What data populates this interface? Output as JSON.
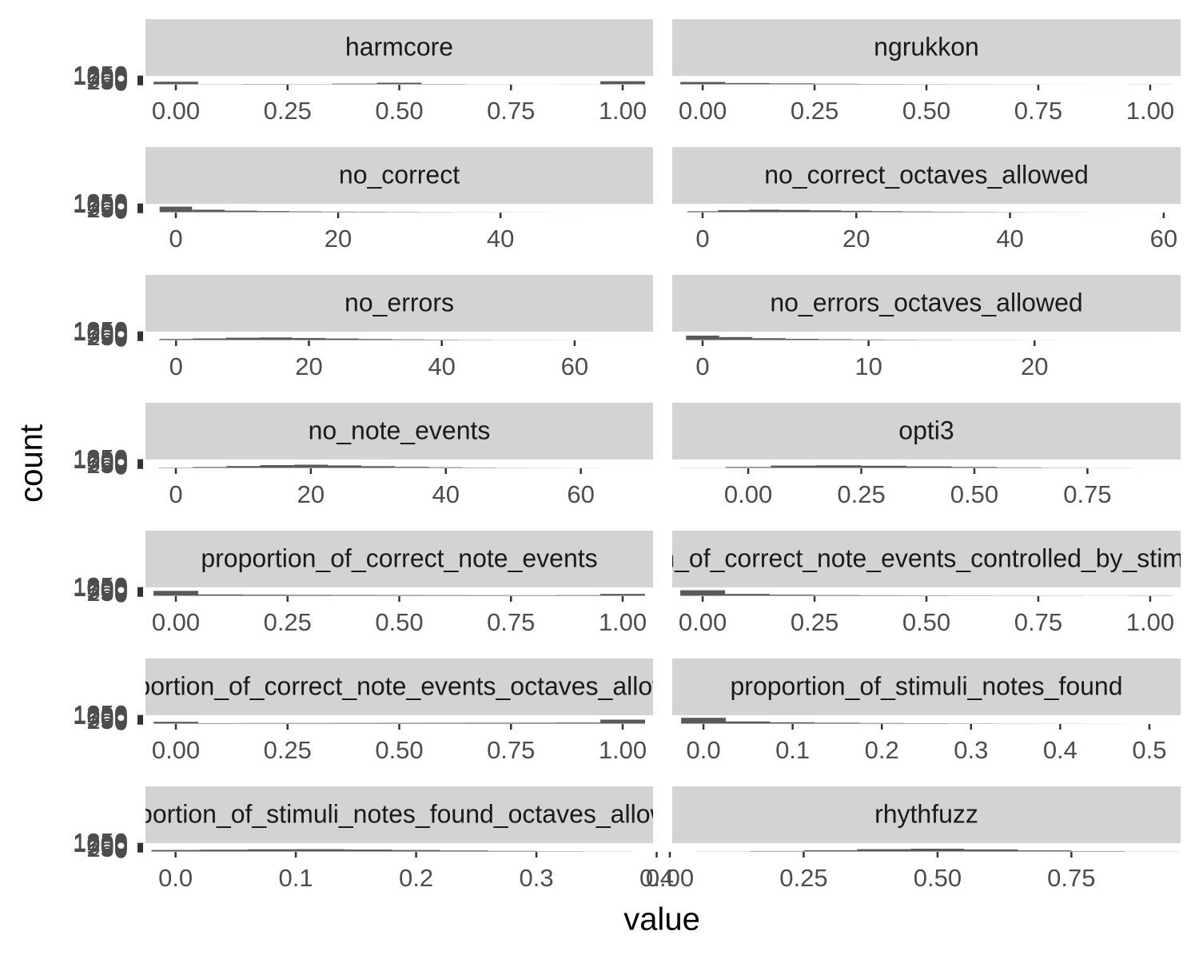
{
  "chart_data": {
    "type": "histogram",
    "xlabel": "value",
    "ylabel": "count",
    "color": "#595959",
    "strip_color": "#d3d3d3",
    "ylim": [
      -65,
      1365
    ],
    "yticks": [
      0,
      250,
      500,
      750,
      1000,
      1250
    ],
    "facets": [
      {
        "title": "harmcore",
        "xlim": [
          -0.068,
          1.068
        ],
        "xticks": [
          {
            "value": 0,
            "label": "0.00"
          },
          {
            "value": 0.25,
            "label": "0.25"
          },
          {
            "value": 0.5,
            "label": "0.50"
          },
          {
            "value": 0.75,
            "label": "0.75"
          },
          {
            "value": 1,
            "label": "1.00"
          }
        ],
        "bins": [
          -0.05,
          0.05,
          0.15,
          0.25,
          0.35,
          0.45,
          0.55,
          0.65,
          0.75,
          0.85,
          0.95,
          1.05
        ],
        "counts": [
          420,
          30,
          60,
          40,
          120,
          260,
          50,
          20,
          10,
          15,
          500
        ]
      },
      {
        "title": "ngrukkon",
        "xlim": [
          -0.068,
          1.068
        ],
        "xticks": [
          {
            "value": 0,
            "label": "0.00"
          },
          {
            "value": 0.25,
            "label": "0.25"
          },
          {
            "value": 0.5,
            "label": "0.50"
          },
          {
            "value": 0.75,
            "label": "0.75"
          },
          {
            "value": 1,
            "label": "1.00"
          }
        ],
        "bins": [
          -0.05,
          0.05,
          0.15,
          0.25,
          0.35,
          0.45,
          0.55,
          0.65,
          0.75,
          0.85,
          0.95,
          1.05
        ],
        "counts": [
          380,
          210,
          150,
          90,
          60,
          40,
          30,
          20,
          10,
          5,
          15
        ]
      },
      {
        "title": "no_correct",
        "xlim": [
          -3.74,
          58.8
        ],
        "xticks": [
          0,
          20,
          40
        ],
        "bins": [
          -2,
          2,
          6,
          10,
          14,
          18,
          22,
          26,
          30,
          34,
          38,
          42,
          46,
          50,
          54,
          58
        ],
        "counts": [
          900,
          400,
          250,
          180,
          120,
          90,
          70,
          50,
          35,
          20,
          15,
          10,
          6,
          3,
          2
        ]
      },
      {
        "title": "no_correct_octaves_allowed",
        "xlim": [
          -3.95,
          62.2
        ],
        "xticks": [
          0,
          20,
          40,
          60
        ],
        "bins": [
          -2,
          2,
          6,
          10,
          14,
          18,
          22,
          26,
          30,
          34,
          38,
          42,
          46,
          50,
          54,
          58,
          62
        ],
        "counts": [
          150,
          320,
          400,
          360,
          290,
          220,
          160,
          110,
          80,
          55,
          35,
          20,
          12,
          6,
          3,
          2
        ]
      },
      {
        "title": "no_errors",
        "xlim": [
          -4.6,
          71.8
        ],
        "xticks": [
          0,
          20,
          40,
          60
        ],
        "bins": [
          -2.5,
          2.5,
          7.5,
          12.5,
          17.5,
          22.5,
          27.5,
          32.5,
          37.5,
          42.5,
          47.5,
          52.5,
          57.5,
          62.5,
          67.5,
          72.5
        ],
        "counts": [
          180,
          260,
          380,
          420,
          330,
          250,
          170,
          110,
          70,
          40,
          25,
          15,
          8,
          4,
          2
        ]
      },
      {
        "title": "no_errors_octaves_allowed",
        "xlim": [
          -1.83,
          28.8
        ],
        "xticks": [
          0,
          10,
          20
        ],
        "bins": [
          -1,
          1,
          3,
          5,
          7,
          9,
          11,
          13,
          15,
          17,
          19,
          21,
          23,
          25,
          27,
          29
        ],
        "counts": [
          720,
          480,
          300,
          200,
          130,
          90,
          60,
          40,
          25,
          15,
          10,
          6,
          4,
          2,
          1
        ]
      },
      {
        "title": "no_note_events",
        "xlim": [
          -4.5,
          70.7
        ],
        "xticks": [
          0,
          20,
          40,
          60
        ],
        "bins": [
          -2.5,
          2.5,
          7.5,
          12.5,
          17.5,
          22.5,
          27.5,
          32.5,
          37.5,
          42.5,
          47.5,
          52.5,
          57.5,
          62.5,
          67.5,
          72.5
        ],
        "counts": [
          60,
          150,
          300,
          450,
          520,
          400,
          280,
          180,
          110,
          60,
          35,
          20,
          10,
          5,
          2
        ]
      },
      {
        "title": "opti3",
        "xlim": [
          -0.168,
          0.956
        ],
        "xticks": [
          {
            "value": 0,
            "label": "0.00"
          },
          {
            "value": 0.25,
            "label": "0.25"
          },
          {
            "value": 0.5,
            "label": "0.50"
          },
          {
            "value": 0.75,
            "label": "0.75"
          }
        ],
        "bins": [
          -0.15,
          -0.05,
          0.05,
          0.15,
          0.25,
          0.35,
          0.45,
          0.55,
          0.65,
          0.75,
          0.85,
          0.95
        ],
        "counts": [
          20,
          150,
          380,
          420,
          350,
          250,
          160,
          90,
          40,
          15,
          5
        ]
      },
      {
        "title": "proportion_of_correct_note_events",
        "xlim": [
          -0.068,
          1.068
        ],
        "xticks": [
          {
            "value": 0,
            "label": "0.00"
          },
          {
            "value": 0.25,
            "label": "0.25"
          },
          {
            "value": 0.5,
            "label": "0.50"
          },
          {
            "value": 0.75,
            "label": "0.75"
          },
          {
            "value": 1,
            "label": "1.00"
          }
        ],
        "bins": [
          -0.05,
          0.05,
          0.15,
          0.25,
          0.35,
          0.45,
          0.55,
          0.65,
          0.75,
          0.85,
          0.95,
          1.05
        ],
        "counts": [
          800,
          220,
          180,
          150,
          130,
          120,
          110,
          100,
          90,
          110,
          300
        ]
      },
      {
        "title": "proportion_of_correct_note_events_controlled_by_stimuli_length",
        "xlim": [
          -0.068,
          1.068
        ],
        "xticks": [
          {
            "value": 0,
            "label": "0.00"
          },
          {
            "value": 0.25,
            "label": "0.25"
          },
          {
            "value": 0.5,
            "label": "0.50"
          },
          {
            "value": 0.75,
            "label": "0.75"
          },
          {
            "value": 1,
            "label": "1.00"
          }
        ],
        "bins": [
          -0.05,
          0.05,
          0.15,
          0.25,
          0.35,
          0.45,
          0.55,
          0.65,
          0.75,
          0.85,
          0.95,
          1.05
        ],
        "counts": [
          900,
          300,
          180,
          120,
          90,
          70,
          50,
          40,
          30,
          20,
          40
        ]
      },
      {
        "title": "proportion_of_correct_note_events_octaves_allowed",
        "xlim": [
          -0.068,
          1.068
        ],
        "xticks": [
          {
            "value": 0,
            "label": "0.00"
          },
          {
            "value": 0.25,
            "label": "0.25"
          },
          {
            "value": 0.5,
            "label": "0.50"
          },
          {
            "value": 0.75,
            "label": "0.75"
          },
          {
            "value": 1,
            "label": "1.00"
          }
        ],
        "bins": [
          -0.05,
          0.05,
          0.15,
          0.25,
          0.35,
          0.45,
          0.55,
          0.65,
          0.75,
          0.85,
          0.95,
          1.05
        ],
        "counts": [
          300,
          80,
          90,
          100,
          110,
          120,
          130,
          140,
          150,
          170,
          650
        ]
      },
      {
        "title": "proportion_of_stimuli_notes_found",
        "xlim": [
          -0.035,
          0.535
        ],
        "xticks": [
          {
            "value": 0,
            "label": "0.0"
          },
          {
            "value": 0.1,
            "label": "0.1"
          },
          {
            "value": 0.2,
            "label": "0.2"
          },
          {
            "value": 0.3,
            "label": "0.3"
          },
          {
            "value": 0.4,
            "label": "0.4"
          },
          {
            "value": 0.5,
            "label": "0.5"
          }
        ],
        "bins": [
          -0.025,
          0.025,
          0.075,
          0.125,
          0.175,
          0.225,
          0.275,
          0.325,
          0.375,
          0.425,
          0.475,
          0.525
        ],
        "counts": [
          950,
          350,
          220,
          150,
          100,
          70,
          45,
          30,
          20,
          10,
          5
        ]
      },
      {
        "title": "proportion_of_stimuli_notes_found_octaves_allowed",
        "xlim": [
          -0.025,
          0.397
        ],
        "xticks": [
          {
            "value": 0,
            "label": "0.0"
          },
          {
            "value": 0.1,
            "label": "0.1"
          },
          {
            "value": 0.2,
            "label": "0.2"
          },
          {
            "value": 0.3,
            "label": "0.3"
          },
          {
            "value": 0.4,
            "label": "0.4"
          }
        ],
        "bins": [
          -0.02,
          0.02,
          0.06,
          0.1,
          0.14,
          0.18,
          0.22,
          0.26,
          0.3,
          0.34,
          0.38
        ],
        "counts": [
          250,
          300,
          360,
          380,
          320,
          240,
          160,
          100,
          50,
          20
        ]
      },
      {
        "title": "rhythfuzz",
        "xlim": [
          0.0045,
          0.954
        ],
        "xticks": [
          {
            "value": 0,
            "label": "0.00"
          },
          {
            "value": 0.25,
            "label": "0.25"
          },
          {
            "value": 0.5,
            "label": "0.50"
          },
          {
            "value": 0.75,
            "label": "0.75"
          }
        ],
        "bins": [
          0.05,
          0.15,
          0.25,
          0.35,
          0.45,
          0.55,
          0.65,
          0.75,
          0.85,
          0.95
        ],
        "counts": [
          20,
          80,
          200,
          380,
          450,
          330,
          180,
          70,
          15
        ]
      }
    ]
  }
}
